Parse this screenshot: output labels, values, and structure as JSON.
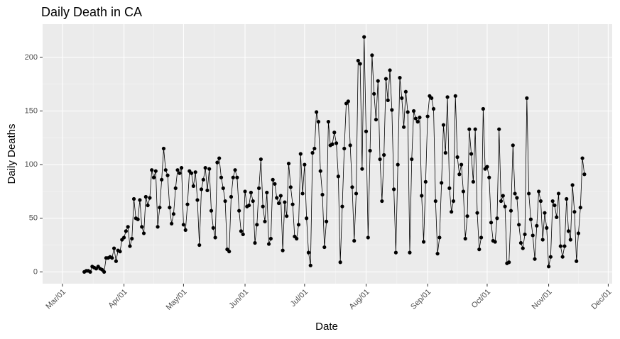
{
  "chart_data": {
    "type": "line",
    "title": "Daily Death in CA",
    "x_label": "Date",
    "y_label": "Daily Deaths",
    "x": [
      "Mar/12",
      "Mar/13",
      "Mar/14",
      "Mar/15",
      "Mar/16",
      "Mar/17",
      "Mar/18",
      "Mar/19",
      "Mar/20",
      "Mar/21",
      "Mar/22",
      "Mar/23",
      "Mar/24",
      "Mar/25",
      "Mar/26",
      "Mar/27",
      "Mar/28",
      "Mar/29",
      "Mar/30",
      "Mar/31",
      "Apr/01",
      "Apr/02",
      "Apr/03",
      "Apr/04",
      "Apr/05",
      "Apr/06",
      "Apr/07",
      "Apr/08",
      "Apr/09",
      "Apr/10",
      "Apr/11",
      "Apr/12",
      "Apr/13",
      "Apr/14",
      "Apr/15",
      "Apr/16",
      "Apr/17",
      "Apr/18",
      "Apr/19",
      "Apr/20",
      "Apr/21",
      "Apr/22",
      "Apr/23",
      "Apr/24",
      "Apr/25",
      "Apr/26",
      "Apr/27",
      "Apr/28",
      "Apr/29",
      "Apr/30",
      "May/01",
      "May/02",
      "May/03",
      "May/04",
      "May/05",
      "May/06",
      "May/07",
      "May/08",
      "May/09",
      "May/10",
      "May/11",
      "May/12",
      "May/13",
      "May/14",
      "May/15",
      "May/16",
      "May/17",
      "May/18",
      "May/19",
      "May/20",
      "May/21",
      "May/22",
      "May/23",
      "May/24",
      "May/25",
      "May/26",
      "May/27",
      "May/28",
      "May/29",
      "May/30",
      "May/31",
      "Jun/01",
      "Jun/02",
      "Jun/03",
      "Jun/04",
      "Jun/05",
      "Jun/06",
      "Jun/07",
      "Jun/08",
      "Jun/09",
      "Jun/10",
      "Jun/11",
      "Jun/12",
      "Jun/13",
      "Jun/14",
      "Jun/15",
      "Jun/16",
      "Jun/17",
      "Jun/18",
      "Jun/19",
      "Jun/20",
      "Jun/21",
      "Jun/22",
      "Jun/23",
      "Jun/24",
      "Jun/25",
      "Jun/26",
      "Jun/27",
      "Jun/28",
      "Jun/29",
      "Jun/30",
      "Jul/01",
      "Jul/02",
      "Jul/03",
      "Jul/04",
      "Jul/05",
      "Jul/06",
      "Jul/07",
      "Jul/08",
      "Jul/09",
      "Jul/10",
      "Jul/11",
      "Jul/12",
      "Jul/13",
      "Jul/14",
      "Jul/15",
      "Jul/16",
      "Jul/17",
      "Jul/18",
      "Jul/19",
      "Jul/20",
      "Jul/21",
      "Jul/22",
      "Jul/23",
      "Jul/24",
      "Jul/25",
      "Jul/26",
      "Jul/27",
      "Jul/28",
      "Jul/29",
      "Jul/30",
      "Jul/31",
      "Aug/01",
      "Aug/02",
      "Aug/03",
      "Aug/04",
      "Aug/05",
      "Aug/06",
      "Aug/07",
      "Aug/08",
      "Aug/09",
      "Aug/10",
      "Aug/11",
      "Aug/12",
      "Aug/13",
      "Aug/14",
      "Aug/15",
      "Aug/16",
      "Aug/17",
      "Aug/18",
      "Aug/19",
      "Aug/20",
      "Aug/21",
      "Aug/22",
      "Aug/23",
      "Aug/24",
      "Aug/25",
      "Aug/26",
      "Aug/27",
      "Aug/28",
      "Aug/29",
      "Aug/30",
      "Aug/31",
      "Sep/01",
      "Sep/02",
      "Sep/03",
      "Sep/04",
      "Sep/05",
      "Sep/06",
      "Sep/07",
      "Sep/08",
      "Sep/09",
      "Sep/10",
      "Sep/11",
      "Sep/12",
      "Sep/13",
      "Sep/14",
      "Sep/15",
      "Sep/16",
      "Sep/17",
      "Sep/18",
      "Sep/19",
      "Sep/20",
      "Sep/21",
      "Sep/22",
      "Sep/23",
      "Sep/24",
      "Sep/25",
      "Sep/26",
      "Sep/27",
      "Sep/28",
      "Sep/29",
      "Sep/30",
      "Oct/01",
      "Oct/02",
      "Oct/03",
      "Oct/04",
      "Oct/05",
      "Oct/06",
      "Oct/07",
      "Oct/08",
      "Oct/09",
      "Oct/10",
      "Oct/11",
      "Oct/12",
      "Oct/13",
      "Oct/14",
      "Oct/15",
      "Oct/16",
      "Oct/17",
      "Oct/18",
      "Oct/19",
      "Oct/20",
      "Oct/21",
      "Oct/22",
      "Oct/23",
      "Oct/24",
      "Oct/25",
      "Oct/26",
      "Oct/27",
      "Oct/28",
      "Oct/29",
      "Oct/30",
      "Oct/31",
      "Nov/01",
      "Nov/02",
      "Nov/03",
      "Nov/04",
      "Nov/05",
      "Nov/06",
      "Nov/07",
      "Nov/08",
      "Nov/09",
      "Nov/10",
      "Nov/11",
      "Nov/12",
      "Nov/13",
      "Nov/14",
      "Nov/15",
      "Nov/16",
      "Nov/17",
      "Nov/18",
      "Nov/19"
    ],
    "values": [
      0,
      1,
      1,
      0,
      5,
      4,
      3,
      5,
      3,
      2,
      0,
      13,
      13,
      14,
      13,
      22,
      10,
      20,
      19,
      30,
      32,
      38,
      42,
      24,
      31,
      68,
      50,
      49,
      67,
      42,
      36,
      70,
      62,
      69,
      95,
      88,
      94,
      42,
      60,
      86,
      115,
      95,
      90,
      60,
      45,
      54,
      78,
      95,
      92,
      97,
      44,
      39,
      63,
      94,
      92,
      80,
      93,
      67,
      25,
      77,
      86,
      97,
      76,
      96,
      57,
      41,
      32,
      102,
      106,
      88,
      78,
      66,
      21,
      19,
      70,
      88,
      95,
      88,
      57,
      38,
      35,
      75,
      61,
      62,
      74,
      66,
      27,
      44,
      78,
      105,
      61,
      47,
      74,
      26,
      31,
      86,
      82,
      69,
      64,
      71,
      20,
      65,
      52,
      101,
      79,
      63,
      33,
      31,
      44,
      110,
      73,
      100,
      50,
      18,
      6,
      111,
      115,
      149,
      140,
      94,
      72,
      23,
      47,
      140,
      118,
      119,
      130,
      120,
      89,
      9,
      61,
      115,
      157,
      159,
      118,
      79,
      29,
      73,
      197,
      194,
      96,
      219,
      131,
      32,
      113,
      202,
      166,
      142,
      178,
      105,
      66,
      109,
      180,
      160,
      188,
      151,
      77,
      18,
      100,
      181,
      162,
      135,
      168,
      149,
      18,
      105,
      150,
      143,
      140,
      144,
      71,
      28,
      84,
      145,
      164,
      162,
      152,
      66,
      17,
      32,
      83,
      137,
      111,
      163,
      78,
      56,
      66,
      164,
      107,
      91,
      100,
      75,
      31,
      52,
      133,
      110,
      84,
      133,
      55,
      21,
      32,
      152,
      96,
      98,
      88,
      46,
      29,
      28,
      50,
      133,
      66,
      71,
      61,
      8,
      9,
      57,
      118,
      73,
      69,
      44,
      27,
      22,
      35,
      162,
      73,
      49,
      34,
      12,
      43,
      75,
      66,
      30,
      55,
      41,
      5,
      14,
      66,
      62,
      51,
      73,
      24,
      14,
      24,
      68,
      38,
      30,
      81,
      56,
      10,
      36,
      60,
      106,
      91
    ],
    "color": "#000000",
    "xlim": [
      "Feb/19",
      "Dec/03"
    ],
    "xticks": [
      "Mar/01",
      "Apr/01",
      "May/01",
      "Jun/01",
      "Jul/01",
      "Aug/01",
      "Sep/01",
      "Oct/01",
      "Nov/01",
      "Dec/01"
    ],
    "ylim": [
      -11,
      231
    ],
    "yticks": [
      0,
      50,
      100,
      150,
      200
    ],
    "grid": true
  }
}
